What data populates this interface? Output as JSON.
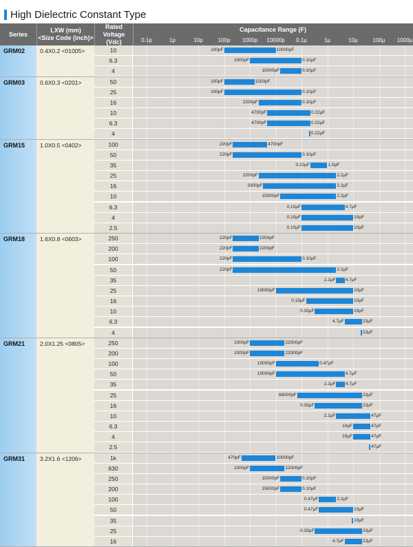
{
  "title": "High Dielectric Constant Type",
  "header": {
    "series": "Series",
    "size_line1": "LXW (mm)",
    "size_line2": "<Size Code (inch)>",
    "voltage_line1": "Rated",
    "voltage_line2": "Voltage",
    "voltage_line3": "(Vdc)",
    "capacitance": "Capacitance Range (F)",
    "ticks": [
      "0.1p",
      "1p",
      "10p",
      "100p",
      "1000p",
      "10000p",
      "0.1µ",
      "1µ",
      "10µ",
      "100µ",
      "1000µ"
    ]
  },
  "colors": {
    "bar": "#1e86d6",
    "header_bg": "#6b6b6b",
    "series_col": "#9ccdf0",
    "size_col": "#f3efdd"
  },
  "groups": [
    {
      "series": "GRM02",
      "size": "0.4X0.2 <01005>",
      "rows": [
        {
          "v": "10",
          "min": "100pF",
          "max": "10000pF"
        },
        {
          "v": "6.3",
          "min": "1000pF",
          "max": "0.10µF"
        },
        {
          "v": "4",
          "min": "15000pF",
          "max": "0.10µF"
        }
      ]
    },
    {
      "series": "GRM03",
      "size": "0.6X0.3 <0201>",
      "rows": [
        {
          "v": "50",
          "min": "100pF",
          "max": "1500pF"
        },
        {
          "v": "25",
          "min": "100pF",
          "max": "0.10µF"
        },
        {
          "v": "16",
          "min": "2200pF",
          "max": "0.10µF"
        },
        {
          "v": "10",
          "min": "4700pF",
          "max": "0.22µF"
        },
        {
          "v": "6.3",
          "min": "4700pF",
          "max": "0.22µF"
        },
        {
          "v": "4",
          "min": "",
          "max": "0.22µF"
        }
      ]
    },
    {
      "series": "GRM15",
      "size": "1.0X0.5 <0402>",
      "rows": [
        {
          "v": "100",
          "min": "220pF",
          "max": "4700pF"
        },
        {
          "v": "50",
          "min": "220pF",
          "max": "0.10µF"
        },
        {
          "v": "35",
          "min": "0.22µF",
          "max": "1.0µF"
        },
        {
          "v": "25",
          "min": "2200pF",
          "max": "2.2µF"
        },
        {
          "v": "16",
          "min": "3300pF",
          "max": "2.2µF"
        },
        {
          "v": "10",
          "min": "15000pF",
          "max": "2.2µF"
        },
        {
          "v": "6.3",
          "min": "0.10µF",
          "max": "4.7µF"
        },
        {
          "v": "4",
          "min": "0.10µF",
          "max": "10µF"
        },
        {
          "v": "2.5",
          "min": "0.10µF",
          "max": "10µF"
        }
      ]
    },
    {
      "series": "GRM18",
      "size": "1.6X0.8 <0603>",
      "rows": [
        {
          "v": "250",
          "min": "220pF",
          "max": "2200pF"
        },
        {
          "v": "200",
          "min": "220pF",
          "max": "2200pF"
        },
        {
          "v": "100",
          "min": "220pF",
          "max": "0.10µF"
        },
        {
          "v": "50",
          "min": "220pF",
          "max": "2.2µF"
        },
        {
          "v": "35",
          "min": "2.2µF",
          "max": "4.7µF"
        },
        {
          "v": "25",
          "min": "10000pF",
          "max": "10µF"
        },
        {
          "v": "16",
          "min": "0.15µF",
          "max": "10µF"
        },
        {
          "v": "10",
          "min": "0.33µF",
          "max": "10µF"
        },
        {
          "v": "6.3",
          "min": "4.7µF",
          "max": "22µF"
        },
        {
          "v": "4",
          "min": "",
          "max": "22µF"
        }
      ]
    },
    {
      "series": "GRM21",
      "size": "2.0X1.25 <0805>",
      "rows": [
        {
          "v": "250",
          "min": "1000pF",
          "max": "22000pF"
        },
        {
          "v": "200",
          "min": "1000pF",
          "max": "22000pF"
        },
        {
          "v": "100",
          "min": "10000pF",
          "max": "0.47µF"
        },
        {
          "v": "50",
          "min": "10000pF",
          "max": "4.7µF"
        },
        {
          "v": "35",
          "min": "2.2µF",
          "max": "4.7µF"
        },
        {
          "v": "25",
          "min": "68000pF",
          "max": "22µF"
        },
        {
          "v": "16",
          "min": "0.33µF",
          "max": "22µF"
        },
        {
          "v": "10",
          "min": "2.2µF",
          "max": "47µF"
        },
        {
          "v": "6.3",
          "min": "10µF",
          "max": "47µF"
        },
        {
          "v": "4",
          "min": "10µF",
          "max": "47µF"
        },
        {
          "v": "2.5",
          "min": "",
          "max": "47µF"
        }
      ]
    },
    {
      "series": "GRM31",
      "size": "3.2X1.6 <1206>",
      "rows": [
        {
          "v": "1k",
          "min": "470pF",
          "max": "10000pF"
        },
        {
          "v": "630",
          "min": "1000pF",
          "max": "22000pF"
        },
        {
          "v": "250",
          "min": "15000pF",
          "max": "0.10µF"
        },
        {
          "v": "200",
          "min": "15000pF",
          "max": "0.10µF"
        },
        {
          "v": "100",
          "min": "0.47µF",
          "max": "2.2µF"
        },
        {
          "v": "50",
          "min": "0.47µF",
          "max": "10µF"
        },
        {
          "v": "35",
          "min": "",
          "max": "10µF"
        },
        {
          "v": "25",
          "min": "0.33µF",
          "max": "22µF"
        },
        {
          "v": "16",
          "min": "4.7µF",
          "max": "22µF"
        }
      ]
    }
  ]
}
